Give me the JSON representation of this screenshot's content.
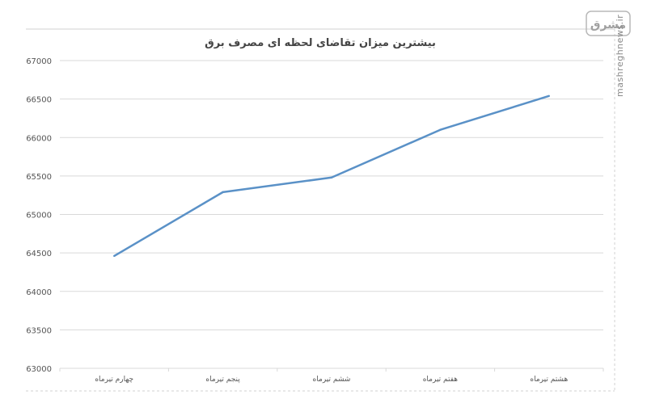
{
  "chart_data": {
    "type": "line",
    "title": "بیشترین میزان تقاضای لحظه ای مصرف برق",
    "categories": [
      "چهارم تیرماه",
      "پنجم تیرماه",
      "ششم تیرماه",
      "هفتم تیرماه",
      "هشتم تیرماه"
    ],
    "series": [
      {
        "values": [
          64460,
          65290,
          65480,
          66100,
          66540
        ]
      }
    ],
    "ylim": [
      63000,
      67000
    ],
    "yticks": [
      "63000",
      "63500",
      "64000",
      "64500",
      "65000",
      "65500",
      "66000",
      "66500",
      "67000"
    ],
    "grid": true,
    "legend": "none",
    "line_color": "#5a91c7",
    "grid_color": "#d9d9d9"
  },
  "watermark": {
    "logo_text": "مشرق",
    "site_text": "mashreghnews.ir"
  }
}
